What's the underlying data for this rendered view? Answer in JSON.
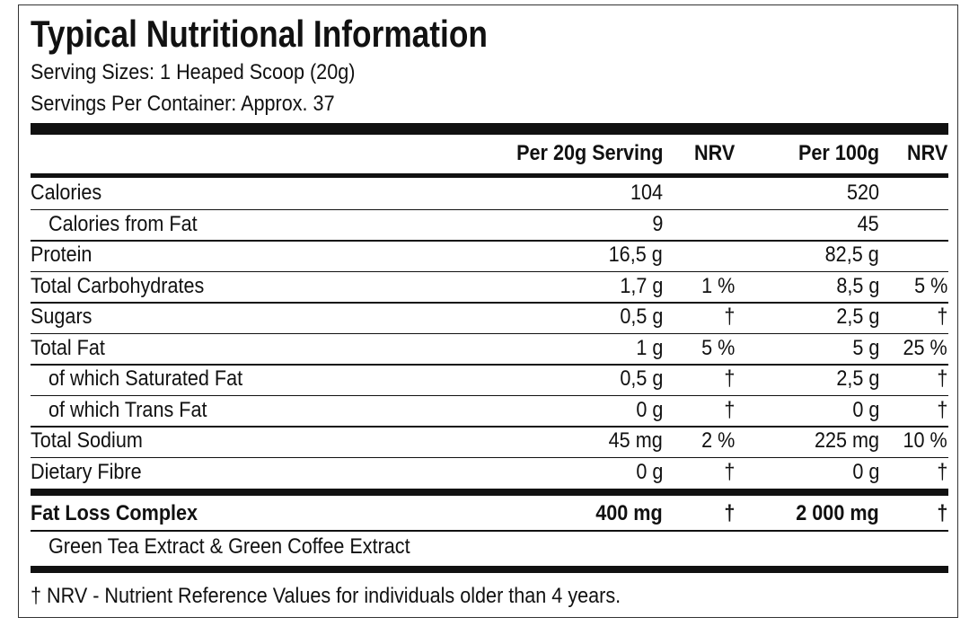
{
  "title": "Typical Nutritional Information",
  "serving_size": "Serving Sizes: 1 Heaped Scoop (20g)",
  "servings_per_container": "Servings Per Container: Approx. 37",
  "table": {
    "headers": [
      "Per 20g Serving",
      "NRV",
      "Per 100g",
      "NRV"
    ],
    "rows": [
      {
        "label": "Calories",
        "per_serving": "104",
        "per_100g": "520"
      },
      {
        "label": "Calories from Fat",
        "per_serving": "9",
        "per_100g": "45"
      },
      {
        "label": "Protein",
        "per_serving": "16,5 g",
        "per_100g": "82,5 g"
      },
      {
        "label": "Total Carbohydrates",
        "per_serving": "1,7 g",
        "per_serving_nrv": "1 %",
        "per_100g": "8,5 g",
        "per_100g_nrv": "5 %"
      },
      {
        "label": "Sugars",
        "per_serving": "0,5 g",
        "per_serving_nrv": "†",
        "per_100g": "2,5 g",
        "per_100g_nrv": "†"
      },
      {
        "label": "Total Fat",
        "per_serving": "1 g",
        "per_serving_nrv": "5 %",
        "per_100g": "5 g",
        "per_100g_nrv": "25 %"
      },
      {
        "label": "of which Saturated Fat",
        "per_serving": "0,5 g",
        "per_serving_nrv": "†",
        "per_100g": "2,5 g",
        "per_100g_nrv": "†"
      },
      {
        "label": "of which Trans Fat",
        "per_serving": "0 g",
        "per_serving_nrv": "†",
        "per_100g": "0 g",
        "per_100g_nrv": "†"
      },
      {
        "label": "Total Sodium",
        "per_serving": "45 mg",
        "per_serving_nrv": "2 %",
        "per_100g": "225 mg",
        "per_100g_nrv": "10 %"
      },
      {
        "label": "Dietary Fibre",
        "per_serving": "0 g",
        "per_serving_nrv": "†",
        "per_100g": "0 g",
        "per_100g_nrv": "†"
      }
    ],
    "complex": {
      "label": "Fat Loss Complex",
      "per_serving": "400 mg",
      "per_serving_nrv": "†",
      "per_100g": "2 000 mg",
      "per_100g_nrv": "†"
    },
    "complex_ingredients": "Green Tea Extract & Green Coffee Extract"
  },
  "footnote": "† NRV - Nutrient Reference Values for individuals older than 4 years."
}
